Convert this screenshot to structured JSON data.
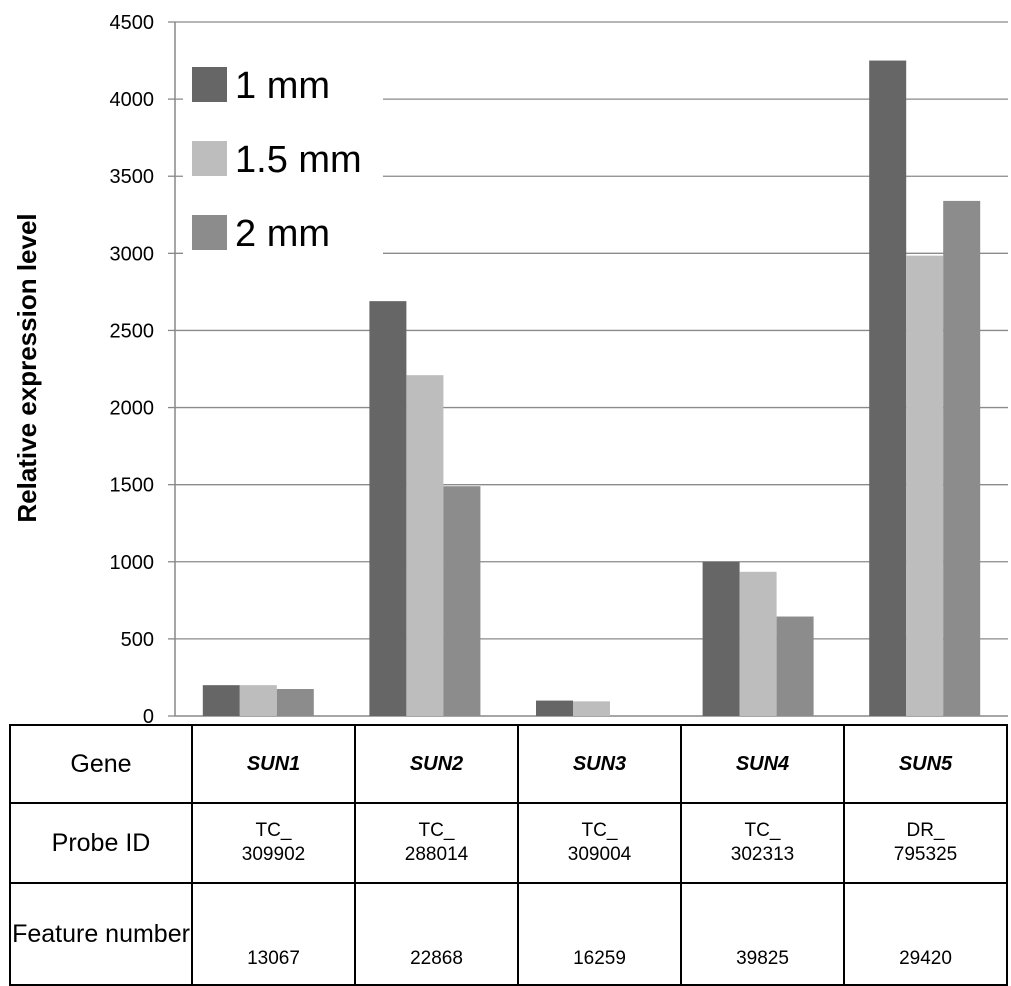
{
  "chart_data": {
    "type": "bar",
    "ylabel": "Relative expression level",
    "ylim": [
      0,
      4500
    ],
    "yticks": [
      0,
      500,
      1000,
      1500,
      2000,
      2500,
      3000,
      3500,
      4000,
      4500
    ],
    "grid": true,
    "legend_position": "top-left",
    "categories": [
      "SUN1",
      "SUN2",
      "SUN3",
      "SUN4",
      "SUN5"
    ],
    "series": [
      {
        "name": "1 mm",
        "color": "#666666",
        "values": [
          200,
          2690,
          100,
          1000,
          4250
        ]
      },
      {
        "name": "1.5 mm",
        "color": "#bdbdbd",
        "values": [
          200,
          2210,
          95,
          935,
          2985
        ]
      },
      {
        "name": "2 mm",
        "color": "#8c8c8c",
        "values": [
          175,
          1490,
          0,
          645,
          3340
        ]
      }
    ]
  },
  "table": {
    "row_headers": {
      "gene": "Gene",
      "probe": "Probe ID",
      "feature": "Feature number"
    },
    "genes": [
      "SUN1",
      "SUN2",
      "SUN3",
      "SUN4",
      "SUN5"
    ],
    "probe_ids": [
      {
        "prefix": "TC_",
        "number": "309902"
      },
      {
        "prefix": "TC_",
        "number": "288014"
      },
      {
        "prefix": "TC_",
        "number": "309004"
      },
      {
        "prefix": "TC_",
        "number": "302313"
      },
      {
        "prefix": "DR_",
        "number": "795325"
      }
    ],
    "feature_numbers": [
      "13067",
      "22868",
      "16259",
      "39825",
      "29420"
    ]
  }
}
